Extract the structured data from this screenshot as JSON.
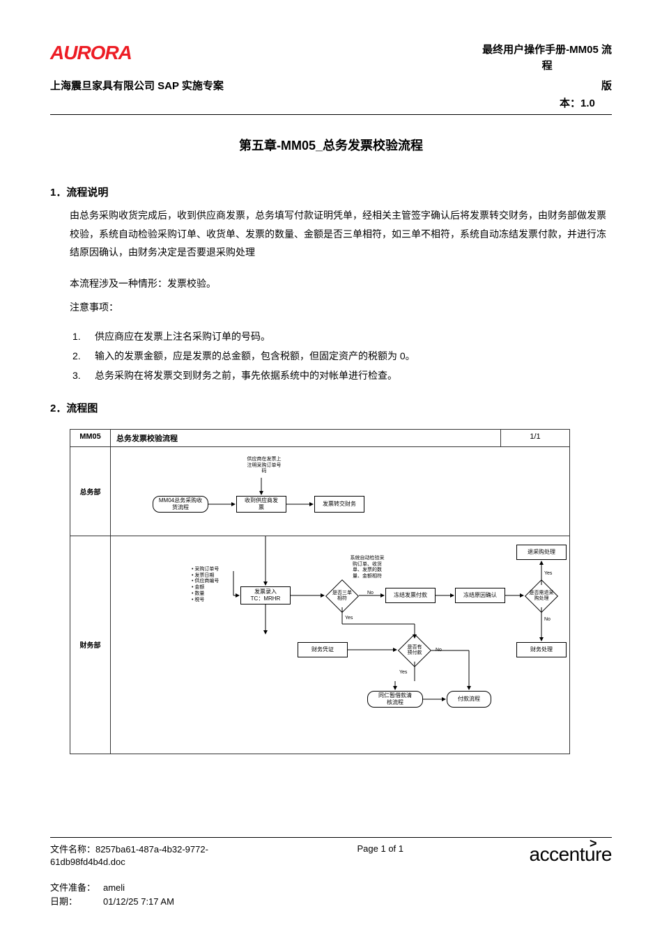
{
  "colors": {
    "logo_red": "#ed1c24",
    "text": "#000000",
    "rule": "#000000",
    "border": "#333333",
    "bg": "#ffffff"
  },
  "header": {
    "logo_text": "AURORA",
    "right_line1": "最终用户操作手册-MM05 流",
    "right_line2": "程",
    "sub_left": "上海震旦家具有限公司 SAP 实施专案",
    "sub_right_label": "版",
    "sub_right_value": "本：1.0"
  },
  "title": "第五章-MM05_总务发票校验流程",
  "section1": {
    "head": "1．流程说明",
    "body": "由总务采购收货完成后，收到供应商发票，总务填写付款证明凭单，经相关主管签字确认后将发票转交财务，由财务部做发票校验，系统自动检验采购订单、收货单、发票的数量、金额是否三单相符，如三单不相符，系统自动冻结发票付款，并进行冻结原因确认，由财务决定是否要退采购处理",
    "sub1": "本流程涉及一种情形：发票校验。",
    "sub2": "注意事项：",
    "notes": [
      "供应商应在发票上注名采购订单的号码。",
      "输入的发票金额，应是发票的总金额，包含税额，但固定资产的税额为 0。",
      "总务采购在将发票交到财务之前，事先依据系统中的对帐单进行检查。"
    ]
  },
  "section2": {
    "head": "2．流程图"
  },
  "diagram": {
    "header": {
      "id": "MM05",
      "title": "总务发票校验流程",
      "page": "1/1"
    },
    "lane1": {
      "label": "总务部"
    },
    "lane2": {
      "label": "财务部"
    },
    "annot_top": "供应商在发票上\n注明采购订单号\n码",
    "annot_mid": "系统自动检验采\n购订单、收货\n单、发票的数\n量、金额相符",
    "annot_left": "• 采购订单号\n• 发票日期\n• 供应商编号\n• 金额\n• 数量\n• 税号",
    "n_mm04": "MM04总务采购收\n货流程",
    "n_recv": "收到供应商发\n票",
    "n_transfer": "发票转交财务",
    "n_entry": "发票录入\nTC：MRHR",
    "d_match": "是否三单\n相符",
    "n_freeze": "冻结发票付款",
    "n_confirm": "冻结原因确认",
    "d_return": "是否需退采\n购处理",
    "n_return": "退采购处理",
    "n_voucher": "财务凭证",
    "d_prepay": "是否有\n预付款",
    "n_finproc": "财务处理",
    "n_clear": "同仁暂借款清\n核流程",
    "n_pay": "付款流程",
    "edge_no": "No",
    "edge_yes": "Yes"
  },
  "footer": {
    "file_label": "文件名称：",
    "file_value": "8257ba61-487a-4b32-9772-61db98fd4b4d.doc",
    "page": "Page 1 of 1",
    "logo": "accenture",
    "prep_label": "文件准备：",
    "prep_value": "ameli",
    "date_label": "日期：",
    "date_value": "01/12/25 7:17 AM"
  }
}
